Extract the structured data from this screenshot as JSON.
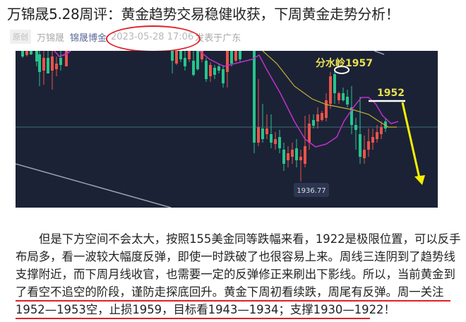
{
  "article": {
    "title": "万锦晟5.28周评：黄金趋势交易稳健收获，下周黄金走势分析！",
    "badge": "原创",
    "author": "万锦晟",
    "source": "锦晟博金",
    "date": "2023-05-28 17:06",
    "location": "发表于广东"
  },
  "chart": {
    "label_watershed": "分水岭1957",
    "label_resistance": "1952",
    "label_low": "1936.77",
    "colors": {
      "up": "#e8534a",
      "down": "#26c48d",
      "ma_fast": "#c030c8",
      "ma_slow": "#c8b030",
      "arrow": "#f5f000",
      "bg": "#1b2236"
    }
  },
  "body": {
    "lines": [
      "但是下方空间不会太大，按照155美金同等跌幅来看，1922是极限位置，可以反手",
      "布局多，看一波较大幅度反弹，即使一时跌破了也很容易上来。周线三连阴到了趋势线",
      "支撑附近，而下周月线收官，也需要一定的反弹修正来刷出下影线。所以，当前黄金到",
      "了看空不追空的阶段，谨防走探底回升。黄金下周初看续跌，周尾有反弹。周一关注",
      "1952—1953空，止损1959，目标看1943—1934；支撑1930—1922！"
    ]
  }
}
